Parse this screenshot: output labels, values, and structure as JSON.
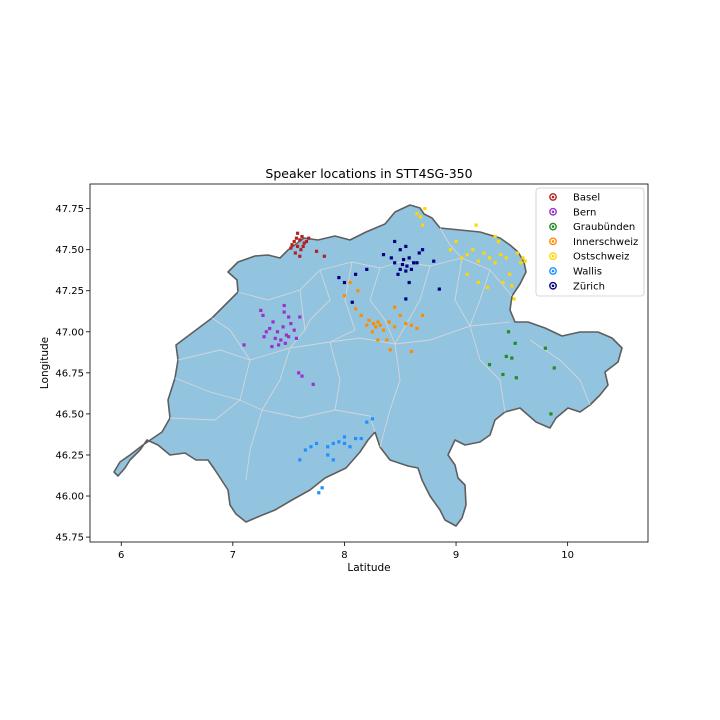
{
  "chart_data": {
    "type": "scatter",
    "title": "Speaker locations in STT4SG-350",
    "xlabel": "Latitude",
    "ylabel": "Longitude",
    "xlim": [
      5.72,
      10.72
    ],
    "ylim": [
      45.72,
      47.9
    ],
    "xticks": [
      6,
      7,
      8,
      9,
      10
    ],
    "yticks": [
      45.75,
      46.0,
      46.25,
      46.5,
      46.75,
      47.0,
      47.25,
      47.5,
      47.75
    ],
    "grid": false,
    "legend_position": "top-right",
    "map_fill_color": "#93c4df",
    "map_edge_color": "#5e5e5e",
    "map_inner_boundary_color": "#d2d6da",
    "series": [
      {
        "name": "Basel",
        "color": "#b22222",
        "points": [
          [
            7.55,
            47.55
          ],
          [
            7.57,
            47.57
          ],
          [
            7.6,
            47.56
          ],
          [
            7.62,
            47.58
          ],
          [
            7.58,
            47.52
          ],
          [
            7.64,
            47.54
          ],
          [
            7.53,
            47.53
          ],
          [
            7.61,
            47.5
          ],
          [
            7.66,
            47.55
          ],
          [
            7.56,
            47.48
          ],
          [
            7.6,
            47.46
          ],
          [
            7.52,
            47.51
          ],
          [
            7.63,
            47.52
          ],
          [
            7.68,
            47.57
          ],
          [
            7.58,
            47.6
          ],
          [
            7.75,
            47.49
          ],
          [
            7.82,
            47.46
          ]
        ]
      },
      {
        "name": "Bern",
        "color": "#9932cc",
        "points": [
          [
            7.25,
            47.13
          ],
          [
            7.27,
            47.1
          ],
          [
            7.33,
            47.02
          ],
          [
            7.36,
            47.06
          ],
          [
            7.4,
            47.0
          ],
          [
            7.38,
            46.96
          ],
          [
            7.45,
            47.03
          ],
          [
            7.48,
            46.98
          ],
          [
            7.43,
            46.95
          ],
          [
            7.41,
            46.92
          ],
          [
            7.47,
            46.93
          ],
          [
            7.5,
            46.97
          ],
          [
            7.52,
            47.05
          ],
          [
            7.55,
            47.01
          ],
          [
            7.3,
            47.0
          ],
          [
            7.28,
            46.97
          ],
          [
            7.46,
            47.12
          ],
          [
            7.5,
            47.09
          ],
          [
            7.57,
            46.96
          ],
          [
            7.6,
            47.09
          ],
          [
            7.1,
            46.92
          ],
          [
            7.35,
            46.91
          ],
          [
            7.59,
            46.75
          ],
          [
            7.62,
            46.73
          ],
          [
            7.72,
            46.68
          ],
          [
            7.46,
            47.16
          ]
        ]
      },
      {
        "name": "Graubünden",
        "color": "#228b22",
        "points": [
          [
            9.47,
            47.0
          ],
          [
            9.53,
            46.93
          ],
          [
            9.45,
            46.85
          ],
          [
            9.5,
            46.84
          ],
          [
            9.42,
            46.74
          ],
          [
            9.54,
            46.72
          ],
          [
            9.3,
            46.8
          ],
          [
            9.8,
            46.9
          ],
          [
            9.88,
            46.78
          ],
          [
            9.85,
            46.5
          ]
        ]
      },
      {
        "name": "Innerschweiz",
        "color": "#ff8c00",
        "points": [
          [
            8.15,
            47.1
          ],
          [
            8.22,
            47.07
          ],
          [
            8.26,
            47.05
          ],
          [
            8.3,
            47.06
          ],
          [
            8.28,
            47.03
          ],
          [
            8.32,
            47.04
          ],
          [
            8.25,
            47.0
          ],
          [
            8.2,
            47.04
          ],
          [
            8.35,
            47.01
          ],
          [
            8.4,
            47.06
          ],
          [
            8.45,
            47.03
          ],
          [
            8.5,
            47.1
          ],
          [
            8.55,
            47.05
          ],
          [
            8.6,
            47.04
          ],
          [
            8.65,
            47.02
          ],
          [
            8.1,
            47.14
          ],
          [
            8.0,
            47.22
          ],
          [
            8.05,
            47.3
          ],
          [
            8.12,
            47.25
          ],
          [
            8.38,
            46.95
          ],
          [
            8.41,
            46.89
          ],
          [
            8.3,
            46.95
          ],
          [
            8.6,
            46.88
          ],
          [
            8.45,
            47.15
          ],
          [
            8.7,
            47.1
          ]
        ]
      },
      {
        "name": "Ostschweiz",
        "color": "#ffd700",
        "points": [
          [
            9.05,
            47.45
          ],
          [
            9.1,
            47.47
          ],
          [
            9.15,
            47.5
          ],
          [
            9.2,
            47.43
          ],
          [
            9.25,
            47.48
          ],
          [
            9.3,
            47.45
          ],
          [
            9.35,
            47.42
          ],
          [
            9.4,
            47.47
          ],
          [
            9.38,
            47.55
          ],
          [
            9.45,
            47.45
          ],
          [
            9.48,
            47.35
          ],
          [
            9.5,
            47.28
          ],
          [
            9.52,
            47.2
          ],
          [
            9.55,
            47.48
          ],
          [
            9.6,
            47.45
          ],
          [
            9.62,
            47.43
          ],
          [
            9.58,
            47.42
          ],
          [
            9.42,
            47.3
          ],
          [
            9.2,
            47.3
          ],
          [
            9.28,
            47.27
          ],
          [
            9.18,
            47.65
          ],
          [
            9.0,
            47.55
          ],
          [
            8.95,
            47.5
          ],
          [
            9.35,
            47.58
          ],
          [
            8.65,
            47.72
          ],
          [
            8.68,
            47.7
          ],
          [
            8.72,
            47.75
          ],
          [
            8.7,
            47.65
          ],
          [
            9.1,
            47.35
          ]
        ]
      },
      {
        "name": "Wallis",
        "color": "#1e90ff",
        "points": [
          [
            7.7,
            46.3
          ],
          [
            7.75,
            46.32
          ],
          [
            7.85,
            46.3
          ],
          [
            7.9,
            46.32
          ],
          [
            7.95,
            46.33
          ],
          [
            8.0,
            46.32
          ],
          [
            8.05,
            46.3
          ],
          [
            8.1,
            46.35
          ],
          [
            8.0,
            46.36
          ],
          [
            7.85,
            46.25
          ],
          [
            7.9,
            46.22
          ],
          [
            7.65,
            46.28
          ],
          [
            7.8,
            46.05
          ],
          [
            7.77,
            46.02
          ],
          [
            8.25,
            46.47
          ],
          [
            8.2,
            46.45
          ],
          [
            8.15,
            46.35
          ],
          [
            7.6,
            46.22
          ]
        ]
      },
      {
        "name": "Zürich",
        "color": "#000080",
        "points": [
          [
            8.45,
            47.42
          ],
          [
            8.5,
            47.38
          ],
          [
            8.52,
            47.41
          ],
          [
            8.55,
            47.37
          ],
          [
            8.48,
            47.35
          ],
          [
            8.53,
            47.44
          ],
          [
            8.56,
            47.4
          ],
          [
            8.58,
            47.45
          ],
          [
            8.6,
            47.38
          ],
          [
            8.62,
            47.42
          ],
          [
            8.5,
            47.5
          ],
          [
            8.55,
            47.52
          ],
          [
            8.67,
            47.48
          ],
          [
            8.7,
            47.5
          ],
          [
            8.65,
            47.42
          ],
          [
            8.42,
            47.45
          ],
          [
            8.35,
            47.47
          ],
          [
            8.2,
            47.38
          ],
          [
            8.1,
            47.35
          ],
          [
            8.0,
            47.3
          ],
          [
            7.95,
            47.33
          ],
          [
            8.8,
            47.43
          ],
          [
            8.85,
            47.26
          ],
          [
            8.55,
            47.2
          ],
          [
            8.07,
            47.18
          ],
          [
            8.58,
            47.3
          ],
          [
            8.45,
            47.55
          ]
        ]
      }
    ]
  }
}
